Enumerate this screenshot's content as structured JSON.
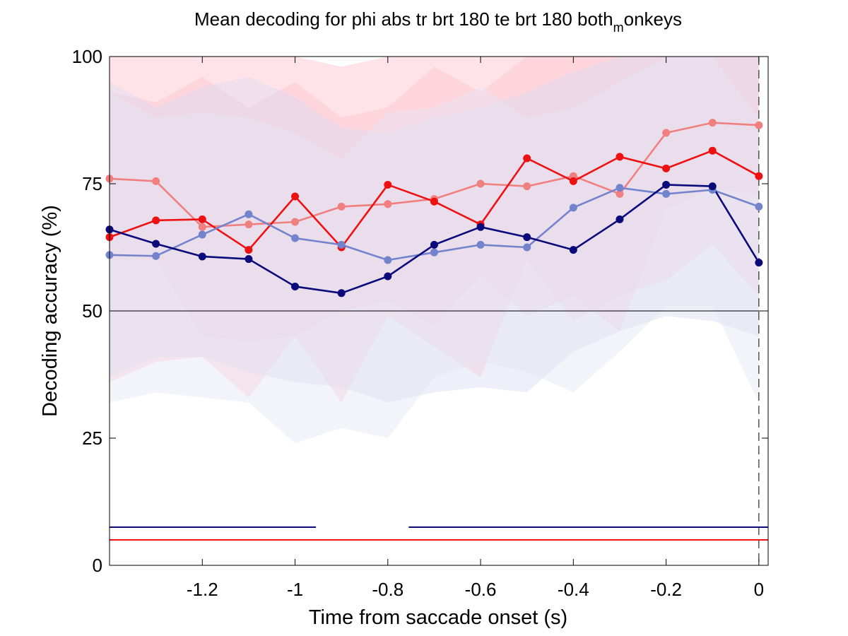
{
  "chart_data": {
    "type": "line",
    "title": "Mean decoding for phi abs tr brt 180 te brt 180  both",
    "title_subscript": "m",
    "title_suffix": "onkeys",
    "xlabel": "Time from saccade onset (s)",
    "ylabel": "Decoding accuracy (%)",
    "xlim": [
      -1.4,
      0.02
    ],
    "ylim": [
      0,
      100
    ],
    "xticks": [
      -1.2,
      -1,
      -0.8,
      -0.6,
      -0.4,
      -0.2,
      0
    ],
    "xtick_labels": [
      "-1.2",
      "-1",
      "-0.8",
      "-0.6",
      "-0.4",
      "-0.2",
      "0"
    ],
    "yticks": [
      0,
      25,
      50,
      75,
      100
    ],
    "ytick_labels": [
      "0",
      "25",
      "50",
      "75",
      "100"
    ],
    "grid": false,
    "chance_level": 50,
    "event_line_x": 0,
    "x": [
      -1.4,
      -1.3,
      -1.2,
      -1.1,
      -1.0,
      -0.9,
      -0.8,
      -0.7,
      -0.6,
      -0.5,
      -0.4,
      -0.3,
      -0.2,
      -0.1,
      0.0
    ],
    "series": [
      {
        "color": "#f08080",
        "band_color": "#ffc8d2",
        "values": [
          76,
          75.5,
          66.5,
          67,
          67.5,
          70.5,
          71,
          72,
          75,
          74.5,
          76.5,
          73,
          85,
          87,
          86.5
        ],
        "upper": [
          93,
          91,
          96,
          90,
          95,
          88,
          90,
          98,
          93,
          100,
          100,
          100,
          100,
          100,
          100
        ],
        "lower": [
          60,
          60,
          45,
          44,
          45,
          50,
          52,
          47,
          57,
          49,
          53,
          46,
          70,
          74,
          73
        ]
      },
      {
        "color": "#ee1111",
        "band_color": "#ffc0cc",
        "values": [
          64.5,
          67.8,
          68,
          62,
          72.5,
          62.5,
          74.8,
          71.5,
          67,
          80,
          75.5,
          80.3,
          78,
          81.5,
          76.5
        ],
        "upper": [
          100,
          100,
          100,
          100,
          100,
          98,
          100,
          100,
          100,
          100,
          100,
          100,
          100,
          100,
          100
        ],
        "lower": [
          36,
          40,
          41,
          33,
          45,
          32,
          49,
          43,
          37,
          60,
          48,
          53,
          56,
          63,
          53
        ]
      },
      {
        "color": "#7384cc",
        "band_color": "#dcdcf2",
        "values": [
          61,
          60.8,
          65,
          69,
          64.3,
          63,
          60,
          61.5,
          63,
          62.5,
          70.3,
          74.2,
          73,
          73.8,
          70.5
        ],
        "upper": [
          95,
          90,
          94,
          96,
          92,
          86,
          85,
          88,
          90,
          93,
          97,
          100,
          100,
          100,
          100
        ],
        "lower": [
          37,
          41,
          41,
          38,
          36,
          35,
          32,
          34,
          35,
          34,
          42,
          46,
          49,
          48,
          45
        ]
      },
      {
        "color": "#0a0a7a",
        "band_color": "#e4e4f4",
        "values": [
          66,
          63.2,
          60.7,
          60.2,
          54.8,
          53.5,
          56.8,
          63,
          66.5,
          64.5,
          62,
          68,
          74.8,
          74.5,
          59.5
        ],
        "upper": [
          93,
          88,
          89,
          88,
          85,
          80,
          89,
          90,
          94,
          88,
          90,
          95,
          100,
          100,
          88
        ],
        "lower": [
          32,
          34,
          33,
          32,
          24,
          27,
          25,
          37,
          40,
          38,
          34,
          42,
          51,
          51,
          32
        ]
      }
    ],
    "significance_bars": [
      {
        "color": "#0a0a7a",
        "y": 7.5,
        "segments": [
          [
            -1.4,
            -0.955
          ],
          [
            -0.755,
            0.02
          ]
        ]
      },
      {
        "color": "#ee1111",
        "y": 5,
        "segments": [
          [
            -1.4,
            0.02
          ]
        ]
      }
    ]
  }
}
